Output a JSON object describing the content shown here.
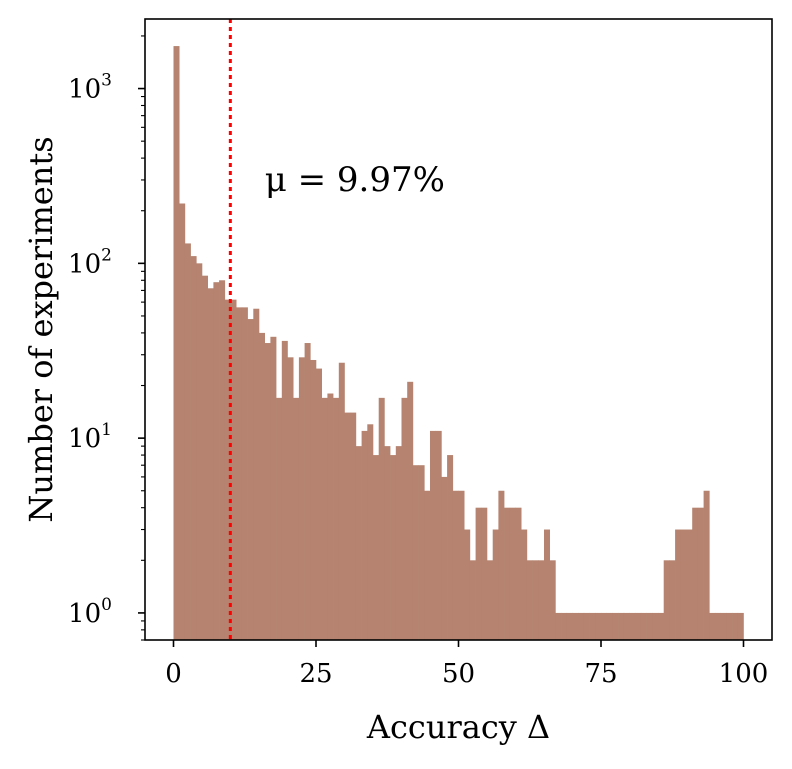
{
  "chart_data": {
    "type": "bar",
    "xlabel": "Accuracy Δ",
    "ylabel": "Number of experiments",
    "annotation": "μ = 9.97%",
    "mean_line_x": 9.97,
    "xlim": [
      -5,
      105
    ],
    "ylim": [
      0.7,
      2500
    ],
    "y_scale": "log",
    "x_ticks": [
      0,
      25,
      50,
      75,
      100
    ],
    "y_ticks": [
      {
        "value": 1,
        "base": "10",
        "exp": "0"
      },
      {
        "value": 10,
        "base": "10",
        "exp": "1"
      },
      {
        "value": 100,
        "base": "10",
        "exp": "2"
      },
      {
        "value": 1000,
        "base": "10",
        "exp": "3"
      }
    ],
    "bin_width": 1,
    "bin_start": 0,
    "values": [
      1750,
      220,
      130,
      110,
      100,
      85,
      72,
      78,
      80,
      62,
      62,
      56,
      56,
      48,
      55,
      40,
      35,
      38,
      17,
      36,
      29,
      17,
      29,
      35,
      28,
      25,
      17,
      18,
      17,
      27,
      14,
      14,
      9,
      11,
      12,
      8,
      17,
      9,
      8,
      9,
      17,
      21,
      7,
      7,
      5,
      11,
      11,
      6,
      8,
      5,
      5,
      3,
      2,
      4,
      4,
      2,
      3,
      5,
      4,
      4,
      4,
      3,
      2,
      2,
      2,
      3,
      2,
      1,
      1,
      1,
      1,
      1,
      1,
      1,
      1,
      1,
      1,
      1,
      1,
      1,
      1,
      1,
      1,
      1,
      1,
      1,
      2,
      2,
      3,
      3,
      3,
      4,
      4,
      5,
      1,
      1,
      1,
      1,
      1,
      1
    ],
    "colors": {
      "bar": "#b5836f",
      "mean_line": "#ff0000"
    }
  }
}
